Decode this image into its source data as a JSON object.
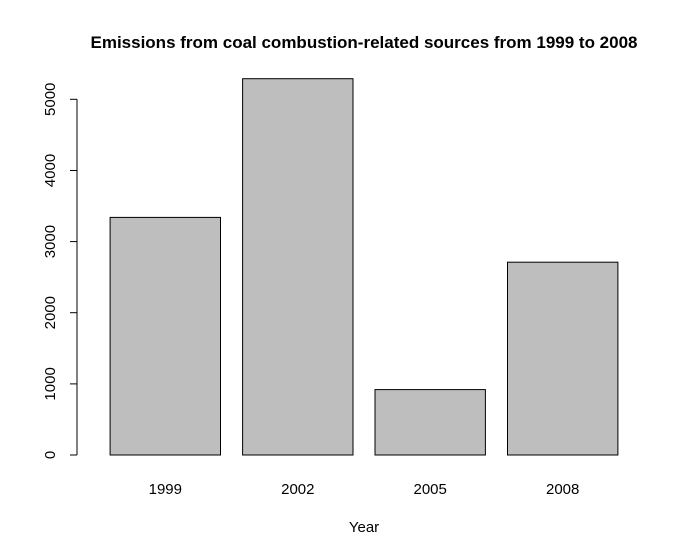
{
  "chart_data": {
    "type": "bar",
    "title": "Emissions from coal combustion-related sources from 1999 to 2008",
    "xlabel": "Year",
    "ylabel": "",
    "categories": [
      "1999",
      "2002",
      "2005",
      "2008"
    ],
    "values": [
      3340,
      5290,
      920,
      2710
    ],
    "ylim": [
      0,
      5300
    ],
    "yticks": [
      0,
      1000,
      2000,
      3000,
      4000,
      5000
    ],
    "grid": false,
    "legend": "none",
    "colors": {
      "bar_fill": "#bebebe",
      "bar_stroke": "#000000",
      "axis": "#000000",
      "background": "#ffffff"
    }
  }
}
